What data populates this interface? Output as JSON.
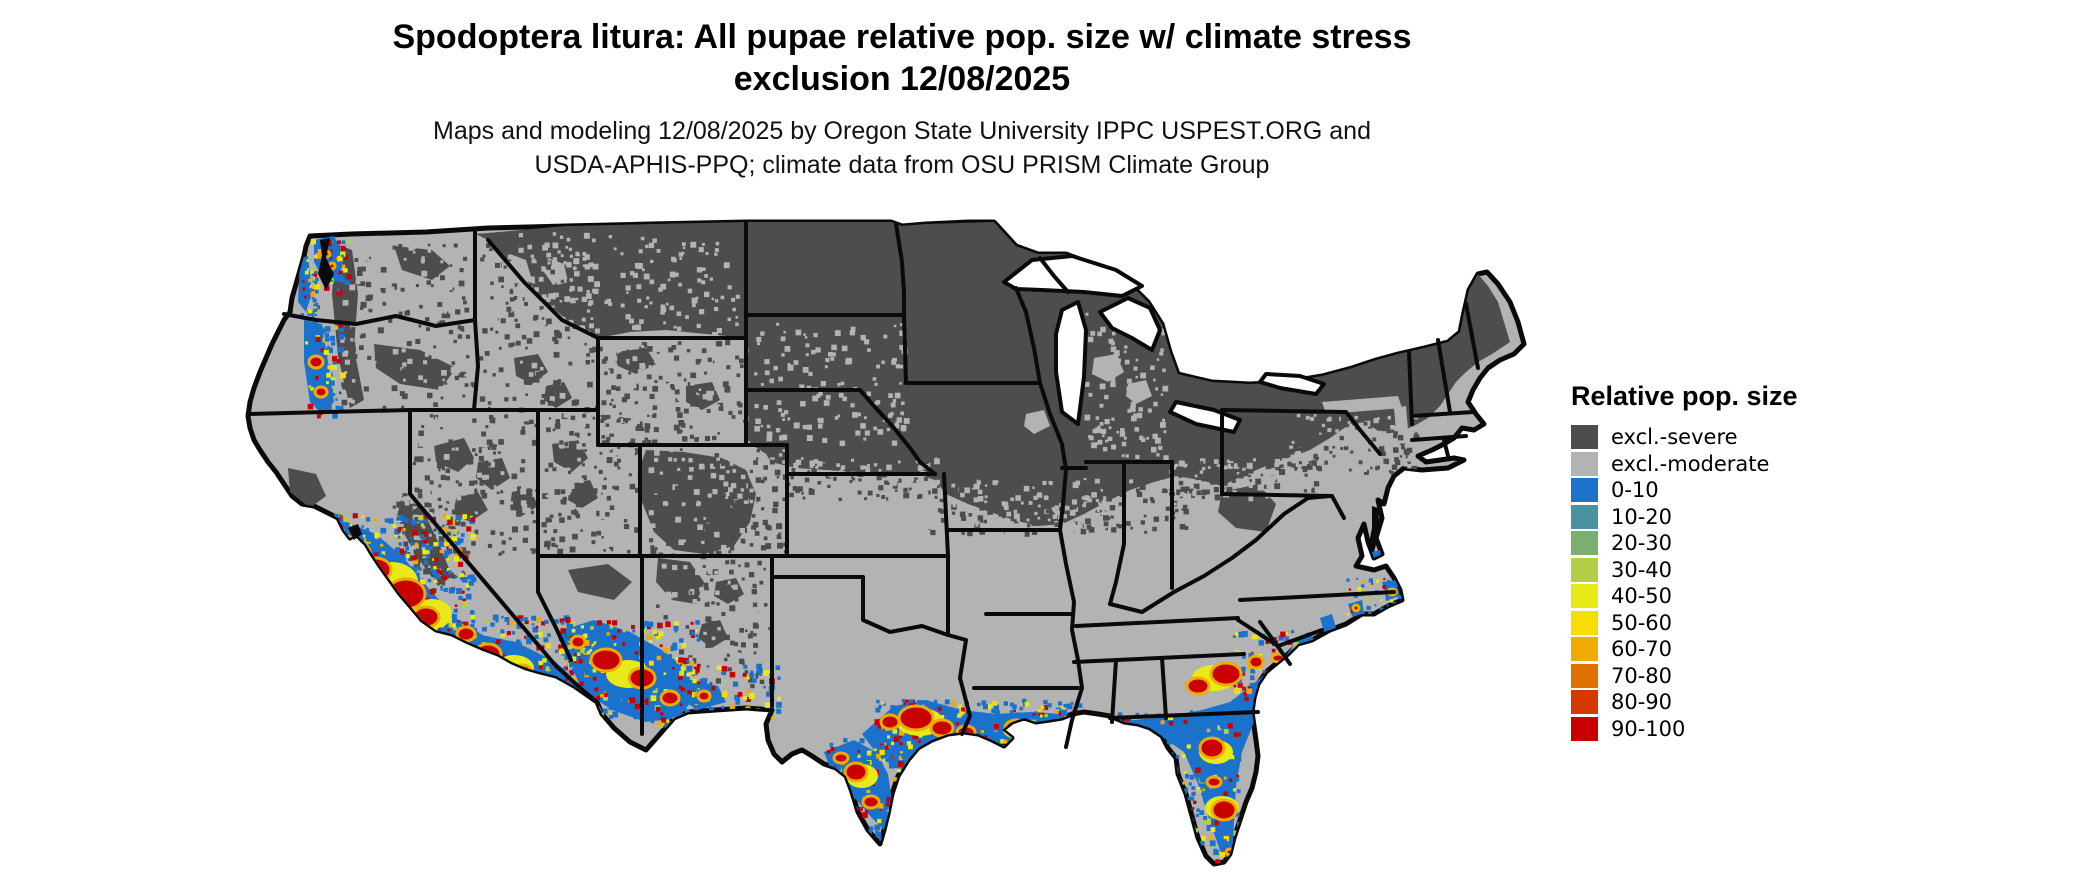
{
  "title": {
    "line1": "Spodoptera litura: All pupae relative pop. size w/ climate stress",
    "line2": "exclusion 12/08/2025"
  },
  "subtitle": {
    "line1": "Maps and modeling 12/08/2025 by Oregon State University IPPC USPEST.ORG and",
    "line2": "USDA-APHIS-PPQ; climate data from OSU PRISM Climate Group"
  },
  "legend": {
    "title": "Relative pop. size",
    "items": [
      {
        "label": "excl.-severe",
        "color": "#4D4D4D"
      },
      {
        "label": "excl.-moderate",
        "color": "#B3B3B3"
      },
      {
        "label": "0-10",
        "color": "#1B72CB"
      },
      {
        "label": "10-20",
        "color": "#4A92A0"
      },
      {
        "label": "20-30",
        "color": "#7BAE70"
      },
      {
        "label": "30-40",
        "color": "#B5CE48"
      },
      {
        "label": "40-50",
        "color": "#E8EA18"
      },
      {
        "label": "50-60",
        "color": "#F8DE00"
      },
      {
        "label": "60-70",
        "color": "#EFAB00"
      },
      {
        "label": "70-80",
        "color": "#E07000"
      },
      {
        "label": "80-90",
        "color": "#D63900"
      },
      {
        "label": "90-100",
        "color": "#C80000"
      }
    ]
  },
  "colors": {
    "severe": "#4D4D4D",
    "moderate": "#B3B3B3",
    "blue": "#1B72CB",
    "teal": "#4A92A0",
    "green": "#7BAE70",
    "ygreen": "#B5CE48",
    "yellow": "#E8EA18",
    "gold": "#F8DE00",
    "orange": "#EFAB00",
    "dorange": "#E07000",
    "rorange": "#D63900",
    "red": "#C80000",
    "border": "#0a0a0a",
    "water": "#ffffff"
  }
}
